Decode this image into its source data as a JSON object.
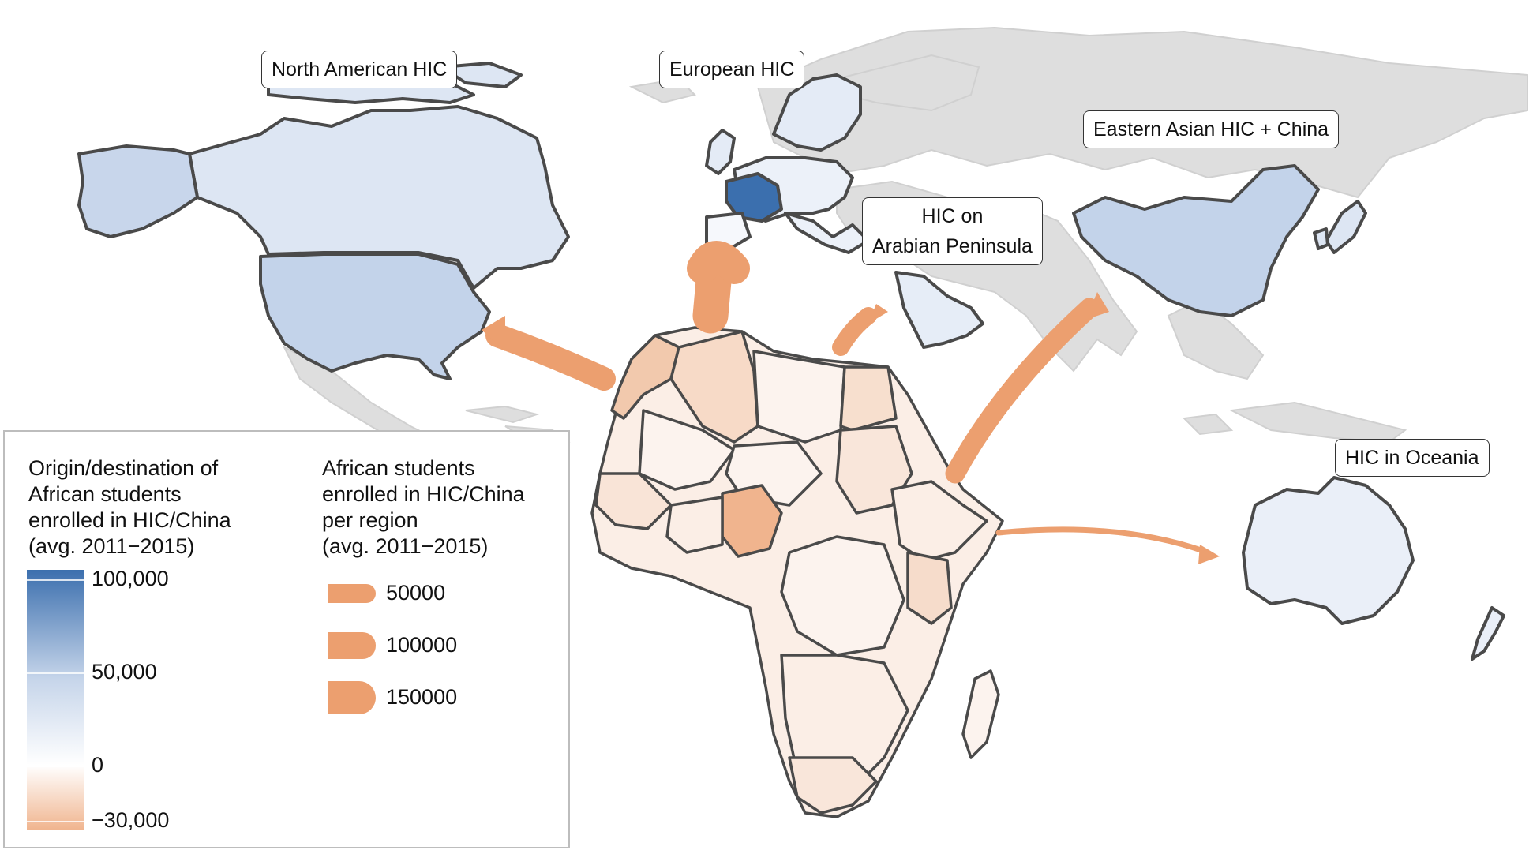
{
  "region_labels": {
    "north_american": "North American HIC",
    "european": "European HIC",
    "eastern_asian": "Eastern Asian HIC + China",
    "arabian_line1": "HIC on",
    "arabian_line2": "Arabian Peninsula",
    "oceania": "HIC in Oceania"
  },
  "legend_color": {
    "title": "Origin/destination of\nAfrican students\nenrolled in HIC/China\n(avg. 2011−2015)",
    "ticks": [
      "100,000",
      "50,000",
      "0",
      "−30,000"
    ],
    "tick_values": [
      100000,
      50000,
      0,
      -30000
    ],
    "range": [
      -35000,
      105000
    ],
    "colors": {
      "high": "#3b6fae",
      "mid": "#ffffff",
      "low": "#f0b48e"
    }
  },
  "legend_flow": {
    "title": "African students\nenrolled in HIC/China\nper region\n(avg. 2011−2015)",
    "items": [
      {
        "label": "50000",
        "value": 50000
      },
      {
        "label": "100000",
        "value": 100000
      },
      {
        "label": "150000",
        "value": 150000
      }
    ],
    "flow_color": "#ec9f6f"
  },
  "colors": {
    "background_land": "#dedede",
    "border": "#4a4a4a",
    "africa_base": "#fbeee6"
  }
}
